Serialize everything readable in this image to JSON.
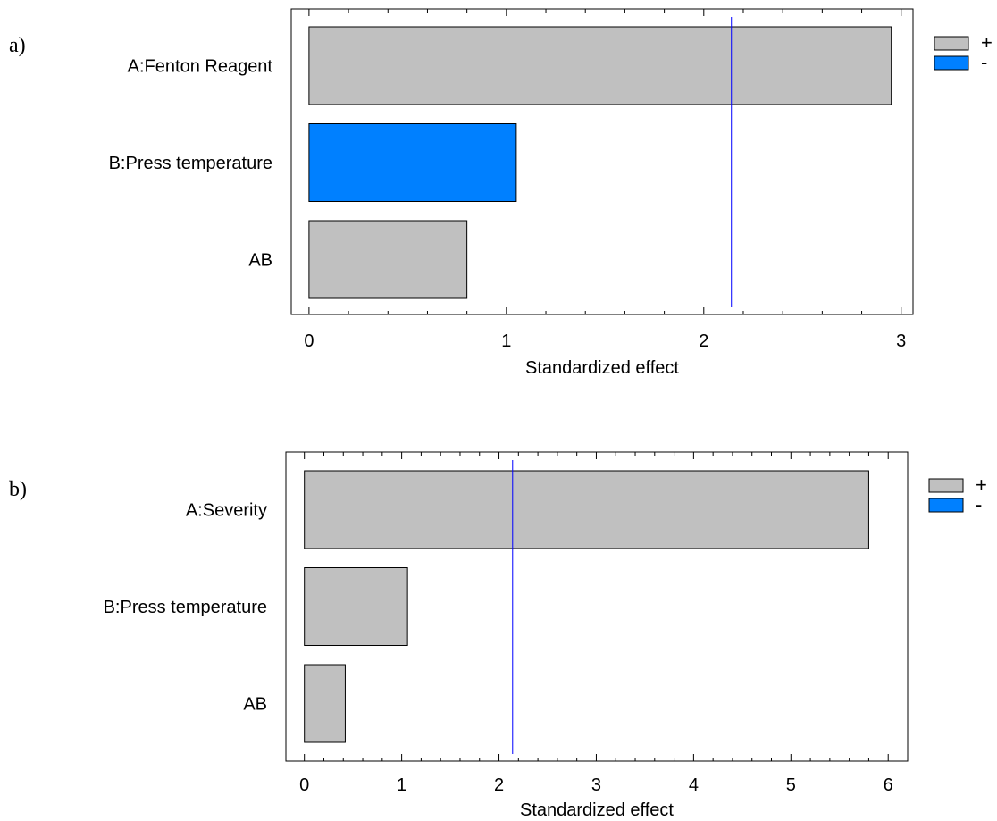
{
  "chart_data": [
    {
      "type": "bar",
      "orientation": "horizontal",
      "panel_label": "a)",
      "categories": [
        "A:Fenton Reagent",
        "B:Press temperature",
        "AB"
      ],
      "values": [
        2.95,
        1.05,
        0.8
      ],
      "signs": [
        "+",
        "-",
        "+"
      ],
      "xlabel": "Standardized effect",
      "xlim": [
        -0.09,
        3.06
      ],
      "xticks": [
        "0",
        "1",
        "2",
        "3"
      ],
      "reference_line": 2.14,
      "legend": [
        {
          "label": "+",
          "color": "#c0c0c0"
        },
        {
          "label": "-",
          "color": "#0080ff"
        }
      ],
      "legend_position": "right"
    },
    {
      "type": "bar",
      "orientation": "horizontal",
      "panel_label": "b)",
      "categories": [
        "A:Severity",
        "B:Press temperature",
        "AB"
      ],
      "values": [
        5.8,
        1.06,
        0.42
      ],
      "signs": [
        "+",
        "+",
        "+"
      ],
      "xlabel": "Standardized effect",
      "xlim": [
        -0.19,
        6.2
      ],
      "xticks": [
        "0",
        "1",
        "2",
        "3",
        "4",
        "5",
        "6"
      ],
      "reference_line": 2.14,
      "legend": [
        {
          "label": "+",
          "color": "#c0c0c0"
        },
        {
          "label": "-",
          "color": "#0080ff"
        }
      ],
      "legend_position": "right"
    }
  ],
  "colors": {
    "positive": "#c0c0c0",
    "negative": "#0080ff",
    "reference_line": "#0000ff",
    "axis": "#000000"
  }
}
